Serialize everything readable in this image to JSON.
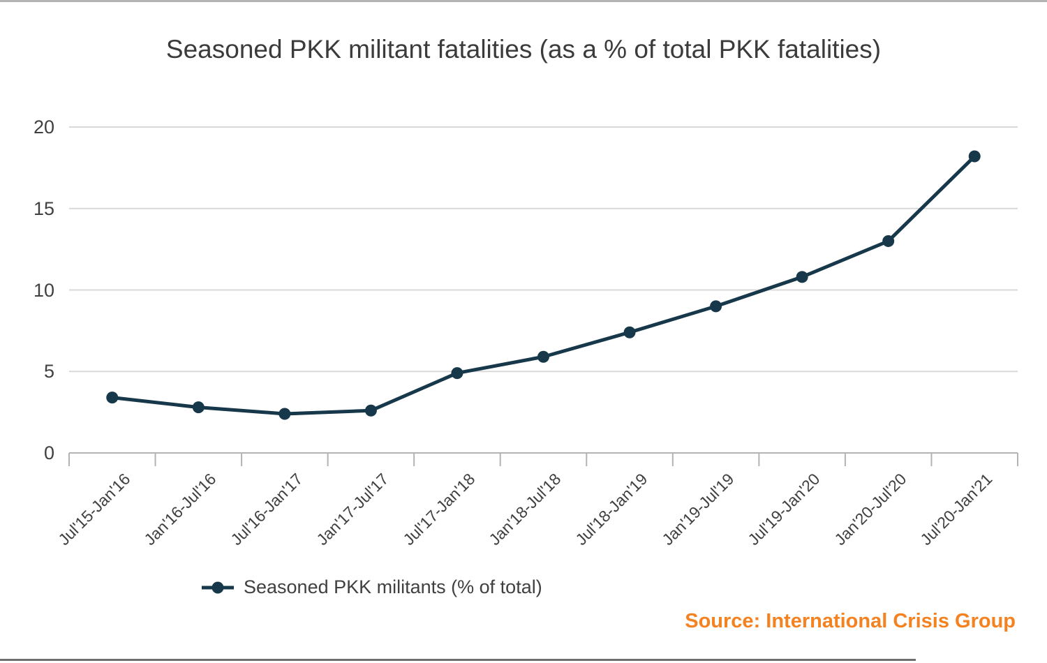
{
  "page": {
    "title": "Seasoned PKK militant fatalities (as a % of total PKK fatalities)",
    "source_credit": "Source: International Crisis Group"
  },
  "legend": {
    "label": "Seasoned PKK militants (% of total)"
  },
  "colors": {
    "series": "#16384a",
    "source_text": "#f58220",
    "title_text": "#3b3b3b",
    "axis_text": "#404040",
    "gridline": "#d9d9d9",
    "axis": "#b3b3b3",
    "top_rule": "#b3b3b3",
    "bottom_rule": "#6f6f6f"
  },
  "chart_data": {
    "type": "line",
    "title": "Seasoned PKK militant fatalities (as a % of total PKK fatalities)",
    "categories": [
      "Jul'15-Jan'16",
      "Jan'16-Jul'16",
      "Jul'16-Jan'17",
      "Jan'17-Jul'17",
      "Jul'17-Jan'18",
      "Jan'18-Jul'18",
      "Jul'18-Jan'19",
      "Jan'19-Jul'19",
      "Jul'19-Jan'20",
      "Jan'20-Jul'20",
      "Jul'20-Jan'21"
    ],
    "series": [
      {
        "name": "Seasoned PKK militants (% of total)",
        "values": [
          3.4,
          2.8,
          2.4,
          2.6,
          4.9,
          5.9,
          7.4,
          9.0,
          10.8,
          13.0,
          18.2
        ]
      }
    ],
    "xlabel": "",
    "ylabel": "",
    "ylim": [
      0,
      20
    ],
    "y_ticks": [
      0,
      5,
      10,
      15,
      20
    ],
    "grid": true,
    "legend_position": "bottom-left",
    "marker": "circle",
    "source": "Source: International Crisis Group"
  }
}
